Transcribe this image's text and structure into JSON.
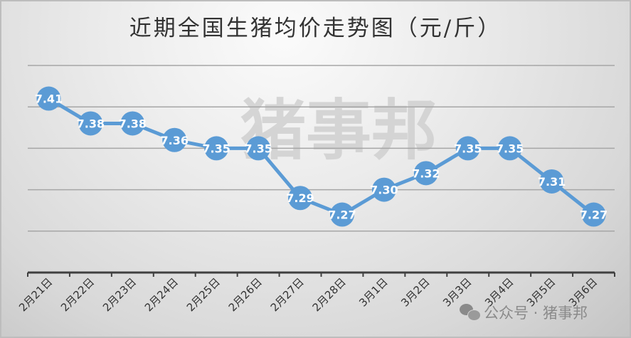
{
  "title": "近期全国生猪均价走势图（元/斤）",
  "watermark": "猪事邦",
  "footer": {
    "icon": "wechat-icon",
    "text": "公众号 · 猪事邦"
  },
  "colors": {
    "line": "#5b9bd5",
    "marker": "#5b9bd5",
    "label": "#ffffff",
    "grid": "#a6a6a6",
    "axis": "#404040",
    "watermark": "#d0d0d0"
  },
  "chart_data": {
    "type": "line",
    "title": "近期全国生猪均价走势图（元/斤）",
    "xlabel": "",
    "ylabel": "",
    "categories": [
      "2月21日",
      "2月22日",
      "2月23日",
      "2月24日",
      "2月25日",
      "2月26日",
      "2月27日",
      "2月28日",
      "3月1日",
      "3月2日",
      "3月3日",
      "3月4日",
      "3月5日",
      "3月6日"
    ],
    "series": [
      {
        "name": "生猪均价",
        "values": [
          7.41,
          7.38,
          7.38,
          7.36,
          7.35,
          7.35,
          7.29,
          7.27,
          7.3,
          7.32,
          7.35,
          7.35,
          7.31,
          7.27
        ]
      }
    ],
    "ylim": [
      7.2,
      7.45
    ],
    "gridlines": [
      7.25,
      7.3,
      7.35,
      7.4,
      7.45
    ],
    "grid": true,
    "y_axis_labels_visible": false,
    "data_labels": true,
    "legend": "none"
  }
}
